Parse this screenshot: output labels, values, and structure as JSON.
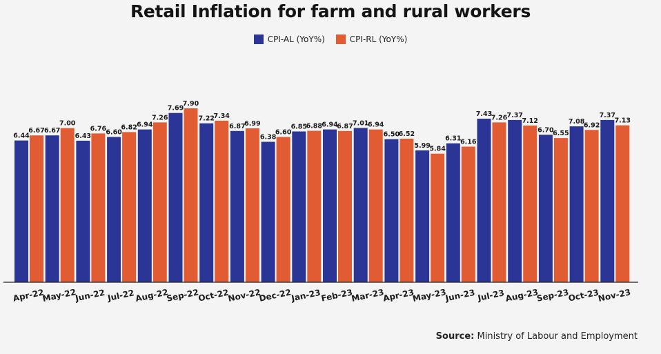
{
  "chart_data": {
    "type": "bar",
    "title": "Retail Inflation for farm and rural workers",
    "categories": [
      "Apr-22",
      "May-22",
      "Jun-22",
      "Jul-22",
      "Aug-22",
      "Sep-22",
      "Oct-22",
      "Nov-22",
      "Dec-22",
      "Jan-23",
      "Feb-23",
      "Mar-23",
      "Apr-23",
      "May-23",
      "Jun-23",
      "Jul-23",
      "Aug-23",
      "Sep-23",
      "Oct-23",
      "Nov-23"
    ],
    "series": [
      {
        "name": "CPI-AL (YoY%)",
        "color": "#2b3595",
        "values": [
          6.44,
          6.67,
          6.43,
          6.6,
          6.94,
          7.69,
          7.22,
          6.87,
          6.38,
          6.85,
          6.94,
          7.01,
          6.5,
          5.99,
          6.31,
          7.43,
          7.37,
          6.7,
          7.08,
          7.37
        ]
      },
      {
        "name": "CPI-RL (YoY%)",
        "color": "#e25c33",
        "values": [
          6.67,
          7.0,
          6.76,
          6.82,
          7.26,
          7.9,
          7.34,
          6.99,
          6.6,
          6.88,
          6.87,
          6.94,
          6.52,
          5.84,
          6.16,
          7.26,
          7.12,
          6.55,
          6.92,
          7.13
        ]
      }
    ],
    "value_labels": [
      [
        "6.44",
        "6.67",
        "6.43",
        "6.60",
        "6.94",
        "7.69",
        "7.22",
        "6.87",
        "6.38",
        "6.85",
        "6.94",
        "7.01",
        "6.50",
        "5.99",
        "6.31",
        "7.43",
        "7.37",
        "6.70",
        "7.08",
        "7.37"
      ],
      [
        "6.67",
        "7.00",
        "6.76",
        "6.82",
        "7.26",
        "7.90",
        "7.34",
        "6.99",
        "6.60",
        "6.88",
        "6.87",
        "6.94",
        "6.52",
        "5.84",
        "6.16",
        "7.26",
        "7.12",
        "6.55",
        "6.92",
        "7.13"
      ]
    ],
    "legend_position": "top-center",
    "grid": false
  },
  "source": {
    "label": "Source:",
    "text": "Ministry of Labour and Employment"
  }
}
